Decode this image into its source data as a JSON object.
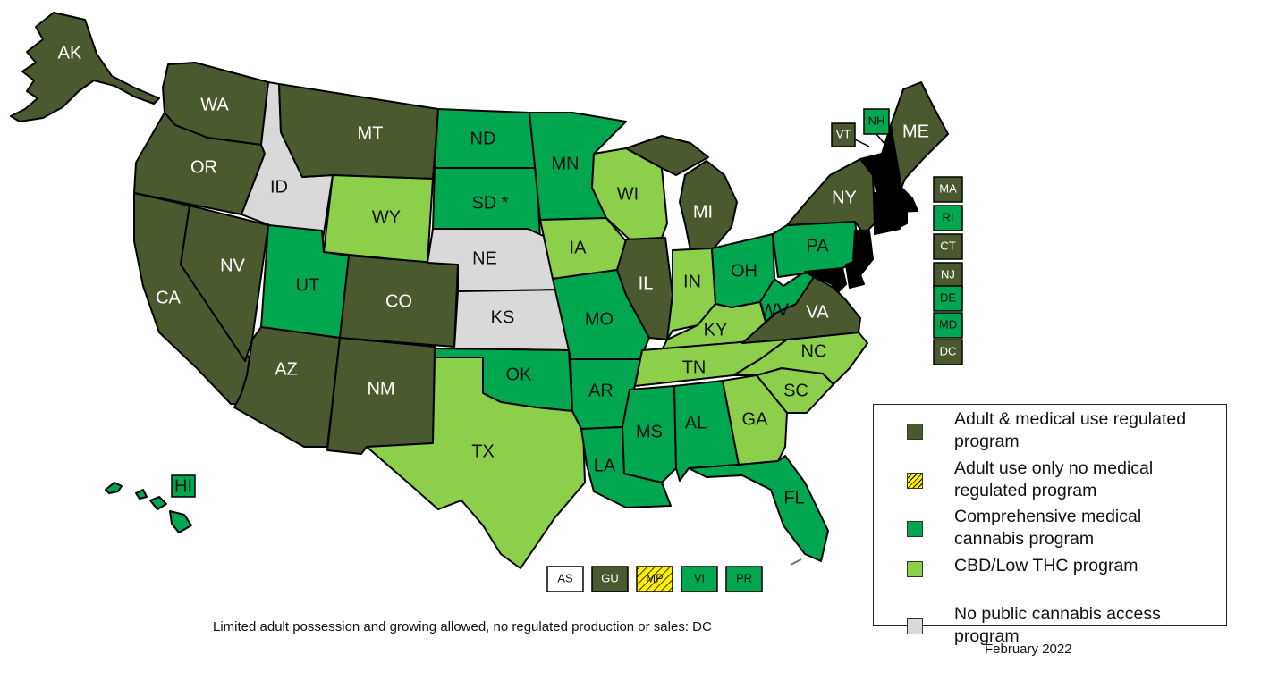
{
  "colors": {
    "adult_medical": "#4b5a2e",
    "adult_only": "#ffef00",
    "comprehensive": "#00a650",
    "cbd_low_thc": "#8ccf4b",
    "no_access": "#d9d9d9",
    "border": "#000000"
  },
  "states": {
    "AK": {
      "label": "AK",
      "category": "adult_medical"
    },
    "WA": {
      "label": "WA",
      "category": "adult_medical"
    },
    "OR": {
      "label": "OR",
      "category": "adult_medical"
    },
    "CA": {
      "label": "CA",
      "category": "adult_medical"
    },
    "NV": {
      "label": "NV",
      "category": "adult_medical"
    },
    "ID": {
      "label": "ID",
      "category": "no_access"
    },
    "MT": {
      "label": "MT",
      "category": "adult_medical"
    },
    "WY": {
      "label": "WY",
      "category": "cbd_low_thc"
    },
    "UT": {
      "label": "UT",
      "category": "comprehensive"
    },
    "AZ": {
      "label": "AZ",
      "category": "adult_medical"
    },
    "CO": {
      "label": "CO",
      "category": "adult_medical"
    },
    "NM": {
      "label": "NM",
      "category": "adult_medical"
    },
    "ND": {
      "label": "ND",
      "category": "comprehensive"
    },
    "SD": {
      "label": "SD *",
      "category": "comprehensive"
    },
    "NE": {
      "label": "NE",
      "category": "no_access"
    },
    "KS": {
      "label": "KS",
      "category": "no_access"
    },
    "OK": {
      "label": "OK",
      "category": "comprehensive"
    },
    "TX": {
      "label": "TX",
      "category": "cbd_low_thc"
    },
    "MN": {
      "label": "MN",
      "category": "comprehensive"
    },
    "IA": {
      "label": "IA",
      "category": "cbd_low_thc"
    },
    "MO": {
      "label": "MO",
      "category": "comprehensive"
    },
    "AR": {
      "label": "AR",
      "category": "comprehensive"
    },
    "LA": {
      "label": "LA",
      "category": "comprehensive"
    },
    "WI": {
      "label": "WI",
      "category": "cbd_low_thc"
    },
    "IL": {
      "label": "IL",
      "category": "adult_medical"
    },
    "MI": {
      "label": "MI",
      "category": "adult_medical"
    },
    "IN": {
      "label": "IN",
      "category": "cbd_low_thc"
    },
    "OH": {
      "label": "OH",
      "category": "comprehensive"
    },
    "KY": {
      "label": "KY",
      "category": "cbd_low_thc"
    },
    "TN": {
      "label": "TN",
      "category": "cbd_low_thc"
    },
    "MS": {
      "label": "MS",
      "category": "comprehensive"
    },
    "AL": {
      "label": "AL",
      "category": "comprehensive"
    },
    "GA": {
      "label": "GA",
      "category": "cbd_low_thc"
    },
    "FL": {
      "label": "FL",
      "category": "comprehensive"
    },
    "SC": {
      "label": "SC",
      "category": "cbd_low_thc"
    },
    "NC": {
      "label": "NC",
      "category": "cbd_low_thc"
    },
    "VA": {
      "label": "VA",
      "category": "adult_medical"
    },
    "WV": {
      "label": "WV",
      "category": "comprehensive"
    },
    "PA": {
      "label": "PA",
      "category": "comprehensive"
    },
    "NY": {
      "label": "NY",
      "category": "adult_medical"
    },
    "ME": {
      "label": "ME",
      "category": "adult_medical"
    },
    "HI": {
      "label": "HI",
      "category": "comprehensive"
    }
  },
  "small_states": [
    {
      "label": "VT",
      "category": "adult_medical"
    },
    {
      "label": "NH",
      "category": "comprehensive"
    },
    {
      "label": "MA",
      "category": "adult_medical"
    },
    {
      "label": "RI",
      "category": "comprehensive"
    },
    {
      "label": "CT",
      "category": "adult_medical"
    },
    {
      "label": "NJ",
      "category": "adult_medical"
    },
    {
      "label": "DE",
      "category": "comprehensive"
    },
    {
      "label": "MD",
      "category": "comprehensive"
    },
    {
      "label": "DC",
      "category": "adult_medical"
    }
  ],
  "territories": [
    {
      "label": "AS",
      "category": "none"
    },
    {
      "label": "GU",
      "category": "adult_medical"
    },
    {
      "label": "MP",
      "category": "adult_only"
    },
    {
      "label": "VI",
      "category": "comprehensive"
    },
    {
      "label": "PR",
      "category": "comprehensive"
    }
  ],
  "legend": [
    {
      "category": "adult_medical",
      "line1": "Adult & medical use regulated",
      "line2": "program"
    },
    {
      "category": "adult_only",
      "line1": "Adult use only no medical",
      "line2": "regulated program"
    },
    {
      "category": "comprehensive",
      "line1": "Comprehensive medical",
      "line2": "cannabis program"
    },
    {
      "category": "cbd_low_thc",
      "line1": "CBD/Low THC program",
      "line2": ""
    },
    {
      "category": "no_access",
      "line1": "No public cannabis access",
      "line2": "program"
    }
  ],
  "footnote": "Limited adult possession and growing allowed, no regulated production or sales: DC",
  "date": "February 2022"
}
